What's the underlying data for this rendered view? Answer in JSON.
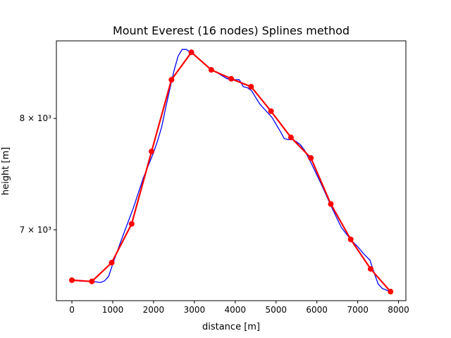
{
  "chart_data": {
    "type": "line",
    "title": "Mount Everest (16 nodes) Splines method",
    "xlabel": "distance [m]",
    "ylabel": "height [m]",
    "yscale": "log",
    "xlim": [
      -380,
      8180
    ],
    "ylim": [
      6430,
      8780
    ],
    "grid": false,
    "x_ticks": [
      0,
      1000,
      2000,
      3000,
      4000,
      5000,
      6000,
      7000,
      8000
    ],
    "x_tick_labels": [
      "0",
      "1000",
      "2000",
      "3000",
      "4000",
      "5000",
      "6000",
      "7000",
      "8000"
    ],
    "y_ticks": [
      7000,
      8000
    ],
    "y_tick_labels": [
      "7 × 10³",
      "8 × 10³"
    ],
    "series": [
      {
        "style": "thin-blue-line",
        "color": "#0000ff",
        "x": [
          0,
          250,
          500,
          600,
          700,
          800,
          900,
          1000,
          1250,
          1500,
          1750,
          2000,
          2100,
          2200,
          2300,
          2400,
          2500,
          2600,
          2700,
          2800,
          2900,
          3000,
          3200,
          3400,
          3600,
          3800,
          4000,
          4100,
          4200,
          4300,
          4400,
          4600,
          4900,
          5100,
          5200,
          5300,
          5400,
          5500,
          5600,
          5700,
          5850,
          6100,
          6350,
          6600,
          6850,
          7000,
          7150,
          7300,
          7400,
          7500,
          7600,
          7800
        ],
        "y": [
          6590,
          6582,
          6580,
          6576,
          6572,
          6585,
          6620,
          6720,
          6950,
          7180,
          7450,
          7680,
          7790,
          7920,
          8110,
          8290,
          8470,
          8620,
          8690,
          8690,
          8660,
          8630,
          8560,
          8490,
          8440,
          8390,
          8380,
          8380,
          8310,
          8300,
          8270,
          8140,
          8010,
          7880,
          7810,
          7800,
          7800,
          7780,
          7750,
          7700,
          7590,
          7400,
          7200,
          7020,
          6910,
          6860,
          6800,
          6750,
          6650,
          6560,
          6525,
          6500
        ]
      },
      {
        "style": "thick-red-line-with-markers",
        "color": "#ff0000",
        "x": [
          0,
          488,
          975,
          1463,
          1951,
          2439,
          2926,
          3414,
          3902,
          4390,
          4877,
          5365,
          5853,
          6341,
          6829,
          7316,
          7804
        ],
        "y": [
          6590,
          6580,
          6730,
          7050,
          7690,
          8380,
          8660,
          8480,
          8390,
          8310,
          8070,
          7820,
          7630,
          7220,
          6920,
          6680,
          6500
        ]
      }
    ]
  }
}
